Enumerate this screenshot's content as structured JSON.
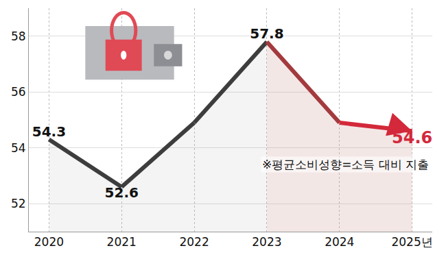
{
  "chart_data": {
    "type": "line",
    "categories": [
      "2020",
      "2021",
      "2022",
      "2023",
      "2024",
      "2025년"
    ],
    "series": [
      {
        "values": [
          54.3,
          52.6,
          54.9,
          57.8,
          54.9,
          54.6
        ],
        "colors": [
          "#3d3d3d",
          "#3d3d3d",
          "#3d3d3d",
          "#3d3d3d",
          "#a33a3e",
          "#d3293a"
        ]
      }
    ],
    "value_labels": [
      "54.3",
      "52.6",
      null,
      "57.8",
      null,
      "54.6"
    ],
    "data_labels": true,
    "note": "※평균소비성향=소득 대비 지출",
    "ylim": [
      51,
      59
    ],
    "yticks": [
      52,
      54,
      56,
      58
    ],
    "grid": true
  }
}
